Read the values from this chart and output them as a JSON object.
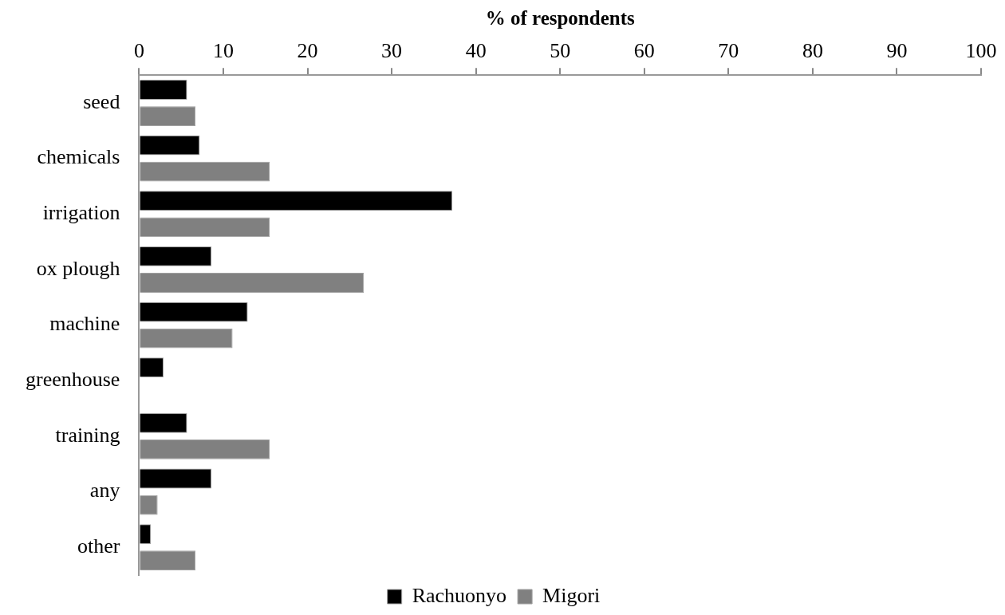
{
  "chart_data": {
    "type": "bar",
    "orientation": "horizontal",
    "xlabel": "% of respondents",
    "categories": [
      "seed",
      "chemicals",
      "irrigation",
      "ox plough",
      "machine",
      "greenhouse",
      "training",
      "any",
      "other"
    ],
    "series": [
      {
        "name": "Rachuonyo",
        "color": "#000000",
        "values": [
          5.7,
          7.2,
          37.2,
          8.6,
          12.9,
          2.9,
          5.7,
          8.6,
          1.4
        ]
      },
      {
        "name": "Migori",
        "color": "#808080",
        "values": [
          6.7,
          15.5,
          15.5,
          26.7,
          11.1,
          0,
          15.5,
          2.2,
          6.7
        ]
      }
    ],
    "xlim": [
      0,
      100
    ],
    "xticks": [
      0,
      10,
      20,
      30,
      40,
      50,
      60,
      70,
      80,
      90,
      100
    ],
    "grid": false,
    "legend": "bottom"
  }
}
